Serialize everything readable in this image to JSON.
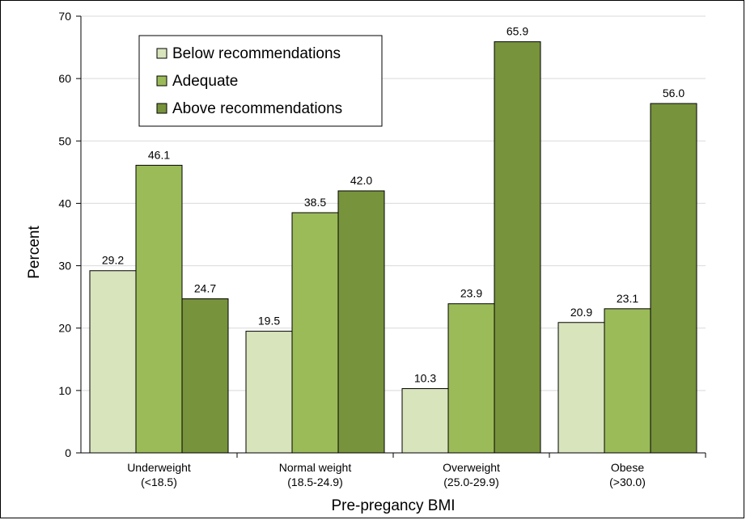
{
  "chart_data": {
    "type": "bar",
    "xlabel": "Pre-pregancy BMI",
    "ylabel": "Percent",
    "ylim": [
      0,
      70
    ],
    "yticks": [
      0,
      10,
      20,
      30,
      40,
      50,
      60,
      70
    ],
    "grid": true,
    "legend_position": "top-left",
    "categories": [
      [
        "Underweight",
        "(<18.5)"
      ],
      [
        "Normal weight",
        "(18.5-24.9)"
      ],
      [
        "Overweight",
        "(25.0-29.9)"
      ],
      [
        "Obese",
        "(>30.0)"
      ]
    ],
    "series": [
      {
        "name": "Below recommendations",
        "color": "#d8e4bc",
        "values": [
          29.2,
          19.5,
          10.3,
          20.9
        ]
      },
      {
        "name": "Adequate",
        "color": "#9bbb59",
        "values": [
          46.1,
          38.5,
          23.9,
          23.1
        ]
      },
      {
        "name": "Above recommendations",
        "color": "#77933c",
        "values": [
          24.7,
          42.0,
          65.9,
          56.0
        ]
      }
    ]
  }
}
